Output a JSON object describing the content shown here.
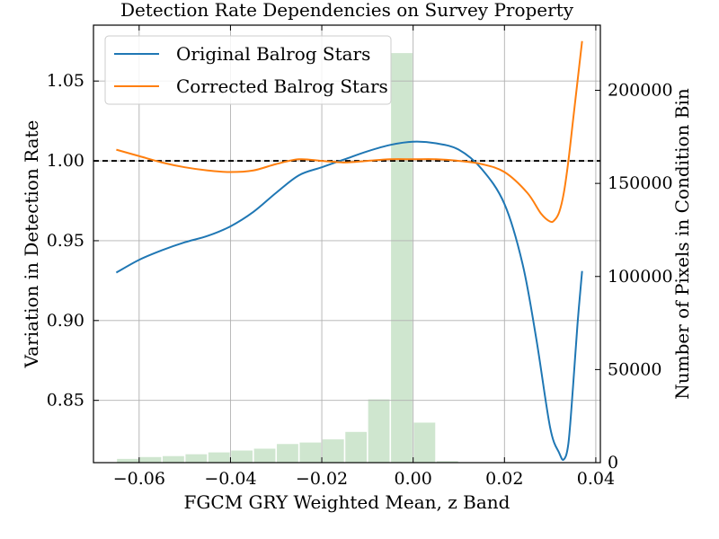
{
  "chart_data": {
    "type": "line",
    "title": "Detection Rate Dependencies on Survey Property",
    "xlabel": "FGCM GRY Weighted Mean, z Band",
    "ylabel": "Variation in Detection Rate",
    "y2label": "Number of Pixels in Condition Bin",
    "xlim": [
      -0.07,
      0.041
    ],
    "ylim": [
      0.811,
      1.085
    ],
    "y2lim": [
      0,
      235000
    ],
    "xticks": [
      -0.06,
      -0.04,
      -0.02,
      0.0,
      0.02,
      0.04
    ],
    "xtick_labels": [
      "−0.06",
      "−0.04",
      "−0.02",
      "0.00",
      "0.02",
      "0.04"
    ],
    "yticks": [
      0.85,
      0.9,
      0.95,
      1.0,
      1.05
    ],
    "ytick_labels": [
      "0.85",
      "0.90",
      "0.95",
      "1.00",
      "1.05"
    ],
    "y2ticks": [
      0,
      50000,
      100000,
      150000,
      200000
    ],
    "y2tick_labels": [
      "0",
      "50000",
      "100000",
      "150000",
      "200000"
    ],
    "grid": true,
    "reference_line": 1.0,
    "legend_location": "upper-left",
    "series": [
      {
        "name": "Original Balrog Stars",
        "color": "#1f77b4",
        "x": [
          -0.065,
          -0.06,
          -0.055,
          -0.05,
          -0.045,
          -0.04,
          -0.035,
          -0.03,
          -0.025,
          -0.02,
          -0.015,
          -0.01,
          -0.005,
          0.0,
          0.005,
          0.01,
          0.015,
          0.02,
          0.024,
          0.027,
          0.03,
          0.032,
          0.033,
          0.034,
          0.035,
          0.036,
          0.037
        ],
        "y": [
          0.93,
          0.938,
          0.944,
          0.949,
          0.953,
          0.959,
          0.968,
          0.98,
          0.991,
          0.996,
          1.001,
          1.006,
          1.01,
          1.012,
          1.011,
          1.007,
          0.995,
          0.973,
          0.935,
          0.888,
          0.833,
          0.817,
          0.813,
          0.823,
          0.858,
          0.898,
          0.931
        ]
      },
      {
        "name": "Corrected Balrog Stars",
        "color": "#ff7f0e",
        "x": [
          -0.065,
          -0.06,
          -0.055,
          -0.05,
          -0.045,
          -0.04,
          -0.035,
          -0.03,
          -0.025,
          -0.02,
          -0.015,
          -0.01,
          -0.005,
          0.0,
          0.005,
          0.01,
          0.015,
          0.02,
          0.025,
          0.028,
          0.03,
          0.031,
          0.032,
          0.033,
          0.034,
          0.035,
          0.036,
          0.037
        ],
        "y": [
          1.007,
          1.003,
          0.999,
          0.996,
          0.994,
          0.993,
          0.994,
          0.998,
          1.001,
          1.0,
          0.999,
          1.0,
          1.001,
          1.001,
          1.001,
          1.0,
          0.998,
          0.993,
          0.98,
          0.967,
          0.962,
          0.963,
          0.968,
          0.98,
          1.0,
          1.025,
          1.05,
          1.075
        ]
      }
    ],
    "histogram": {
      "color": "#cfe6cf",
      "bins": [
        -0.065,
        -0.06,
        -0.055,
        -0.05,
        -0.045,
        -0.04,
        -0.035,
        -0.03,
        -0.025,
        -0.02,
        -0.015,
        -0.01,
        -0.005,
        0.0,
        0.005,
        0.01,
        0.015,
        0.02,
        0.025,
        0.03,
        0.035,
        0.04
      ],
      "counts": [
        2000,
        3000,
        3500,
        4500,
        5500,
        6500,
        7500,
        10000,
        10800,
        12500,
        16500,
        34000,
        220000,
        21500,
        800,
        0,
        0,
        0,
        0,
        0,
        0
      ]
    }
  }
}
